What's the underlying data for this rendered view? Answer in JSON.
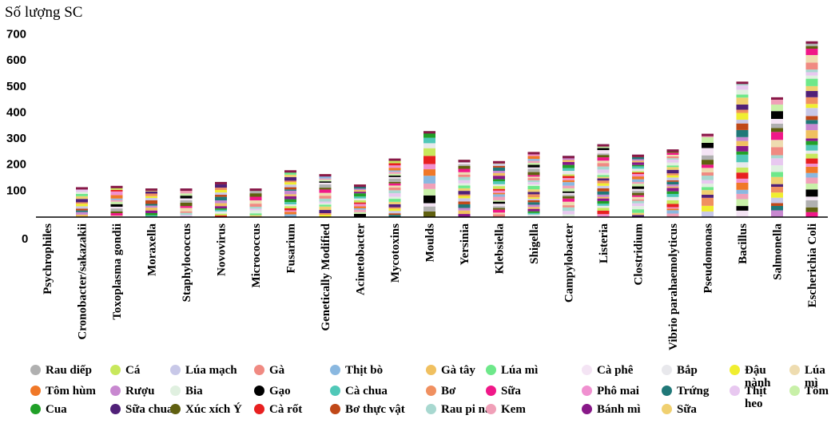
{
  "chart_data": {
    "type": "bar",
    "stacked": true,
    "ylabel": "Số lượng SC",
    "xlabel": "",
    "yticks": [
      100,
      200,
      300,
      400,
      500,
      600,
      700
    ],
    "ylim": [
      0,
      730
    ],
    "zero_label": "0",
    "grid": false,
    "legend_position": "bottom",
    "categories": [
      "Psychrophiles",
      "Cronobacter/sakazakii",
      "Toxoplasma gondii",
      "Moraxella",
      "Staphylococcus",
      "Novovirus",
      "Micrococcus",
      "Fusarium",
      "Genetically Modified",
      "Acinetobacter",
      "Mycotoxins",
      "Moulds",
      "Yersinia",
      "Klebsiella",
      "Shigella",
      "Campylobacter",
      "Listeria",
      "Clostridium",
      "Vibrio parahaemolyticus",
      "Pseudomonas",
      "Bacillus",
      "Salmonella",
      "Escherichia Coli"
    ],
    "totals": [
      0,
      115,
      120,
      110,
      110,
      135,
      110,
      180,
      165,
      125,
      225,
      330,
      220,
      215,
      250,
      235,
      280,
      240,
      260,
      320,
      520,
      460,
      675
    ],
    "series": [
      {
        "name": "Rau diếp",
        "color": "#b0b0b0"
      },
      {
        "name": "Cá",
        "color": "#c8e85c"
      },
      {
        "name": "Lúa mạch",
        "color": "#c8c8e8"
      },
      {
        "name": "Gà",
        "color": "#f08a82"
      },
      {
        "name": "Thịt bò",
        "color": "#8ab8e0"
      },
      {
        "name": "Gà tây",
        "color": "#f0c060"
      },
      {
        "name": "Lúa mì",
        "color": "#6ee88a"
      },
      {
        "name": "Cà phê",
        "color": "#f4e4f4"
      },
      {
        "name": "Bắp",
        "color": "#e8e8ec"
      },
      {
        "name": "Đậu nành",
        "color": "#f0ee30"
      },
      {
        "name": "Lúa mì",
        "color": "#eedcb0"
      },
      {
        "name": "Tôm hùm",
        "color": "#f07828"
      },
      {
        "name": "Rượu",
        "color": "#c888d0"
      },
      {
        "name": "Bia",
        "color": "#e0f0e0"
      },
      {
        "name": "Gạo",
        "color": "#000000"
      },
      {
        "name": "Cà chua",
        "color": "#50c8b8"
      },
      {
        "name": "Bơ",
        "color": "#f09060"
      },
      {
        "name": "Sữa",
        "color": "#f01888"
      },
      {
        "name": "Phô mai",
        "color": "#f090d0"
      },
      {
        "name": "Trứng",
        "color": "#207878"
      },
      {
        "name": "Thịt heo",
        "color": "#e8c8f0"
      },
      {
        "name": "Tôm",
        "color": "#c8f0a8"
      },
      {
        "name": "Cua",
        "color": "#20a028"
      },
      {
        "name": "Sữa chua",
        "color": "#502078"
      },
      {
        "name": "Xúc xích Ý",
        "color": "#606010"
      },
      {
        "name": "Cà rốt",
        "color": "#e82020"
      },
      {
        "name": "Bơ thực vật",
        "color": "#c04818"
      },
      {
        "name": "Rau pi na",
        "color": "#a8d8d0"
      },
      {
        "name": "Kem",
        "color": "#f0a0b8"
      },
      {
        "name": "Bánh mì",
        "color": "#881888"
      },
      {
        "name": "Sữa",
        "color": "#f0d070"
      }
    ]
  }
}
